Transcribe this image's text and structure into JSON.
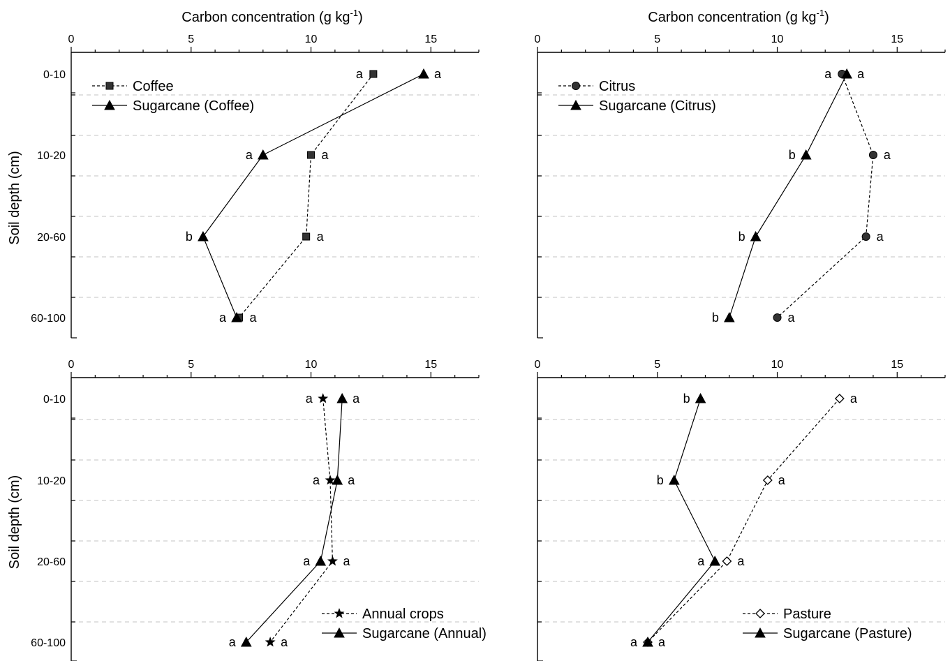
{
  "chart_data": [
    {
      "type": "line",
      "panel": "top-left",
      "xlabel": "Carbon concentration (g kg-1)",
      "ylabel": "Soil depth (cm)",
      "xlim": [
        0,
        17
      ],
      "x_ticks": [
        0,
        5,
        10,
        15
      ],
      "y_categories": [
        "0-10",
        "10-20",
        "20-60",
        "60-100"
      ],
      "grid": "horizontal dashed",
      "legend": "top-left",
      "series": [
        {
          "name": "Coffee",
          "marker": "square",
          "line": "dashed",
          "values": [
            12.6,
            10.0,
            9.8,
            7.0
          ],
          "letters": [
            "a",
            "a",
            "a",
            "a"
          ],
          "letter_side": [
            "left",
            "right",
            "right",
            "right"
          ]
        },
        {
          "name": "Sugarcane (Coffee)",
          "marker": "triangle",
          "line": "solid",
          "values": [
            14.7,
            8.0,
            5.5,
            6.9
          ],
          "letters": [
            "a",
            "a",
            "b",
            "a"
          ],
          "letter_side": [
            "right",
            "left",
            "left",
            "left"
          ]
        }
      ]
    },
    {
      "type": "line",
      "panel": "top-right",
      "xlabel": "Carbon concentration (g kg-1)",
      "ylabel": "",
      "xlim": [
        0,
        17
      ],
      "x_ticks": [
        0,
        5,
        10,
        15
      ],
      "y_categories": [
        "",
        "",
        "",
        ""
      ],
      "grid": "horizontal dashed",
      "legend": "top-left",
      "series": [
        {
          "name": "Citrus",
          "marker": "circle",
          "line": "dashed",
          "values": [
            12.7,
            14.0,
            13.7,
            10.0
          ],
          "letters": [
            "a",
            "a",
            "a",
            "a"
          ],
          "letter_side": [
            "left",
            "right",
            "right",
            "right"
          ]
        },
        {
          "name": "Sugarcane (Citrus)",
          "marker": "triangle",
          "line": "solid",
          "values": [
            12.9,
            11.2,
            9.1,
            8.0
          ],
          "letters": [
            "a",
            "b",
            "b",
            "b"
          ],
          "letter_side": [
            "right",
            "left",
            "left",
            "left"
          ]
        }
      ]
    },
    {
      "type": "line",
      "panel": "bottom-left",
      "xlabel": "",
      "ylabel": "Soil depth (cm)",
      "xlim": [
        0,
        17
      ],
      "x_ticks": [
        0,
        5,
        10,
        15
      ],
      "y_categories": [
        "0-10",
        "10-20",
        "20-60",
        "60-100"
      ],
      "grid": "horizontal dashed",
      "legend": "bottom-right",
      "series": [
        {
          "name": "Annual crops",
          "marker": "star",
          "line": "dashed",
          "values": [
            10.5,
            10.8,
            10.9,
            8.3
          ],
          "letters": [
            "a",
            "a",
            "a",
            "a"
          ],
          "letter_side": [
            "left",
            "left",
            "right",
            "right"
          ]
        },
        {
          "name": "Sugarcane (Annual)",
          "marker": "triangle",
          "line": "solid",
          "values": [
            11.3,
            11.1,
            10.4,
            7.3
          ],
          "letters": [
            "a",
            "a",
            "a",
            "a"
          ],
          "letter_side": [
            "right",
            "right",
            "left",
            "left"
          ]
        }
      ]
    },
    {
      "type": "line",
      "panel": "bottom-right",
      "xlabel": "",
      "ylabel": "",
      "xlim": [
        0,
        17
      ],
      "x_ticks": [
        0,
        5,
        10,
        15
      ],
      "y_categories": [
        "",
        "",
        "",
        ""
      ],
      "grid": "horizontal dashed",
      "legend": "bottom-right",
      "series": [
        {
          "name": "Pasture",
          "marker": "diamond-open",
          "line": "dashed",
          "values": [
            12.6,
            9.6,
            7.9,
            4.6
          ],
          "letters": [
            "a",
            "a",
            "a",
            "a"
          ],
          "letter_side": [
            "right",
            "right",
            "right",
            "right"
          ]
        },
        {
          "name": "Sugarcane (Pasture)",
          "marker": "triangle",
          "line": "solid",
          "values": [
            6.8,
            5.7,
            7.4,
            4.6
          ],
          "letters": [
            "b",
            "b",
            "a",
            "a"
          ],
          "letter_side": [
            "left",
            "left",
            "left",
            "left"
          ]
        }
      ]
    }
  ]
}
